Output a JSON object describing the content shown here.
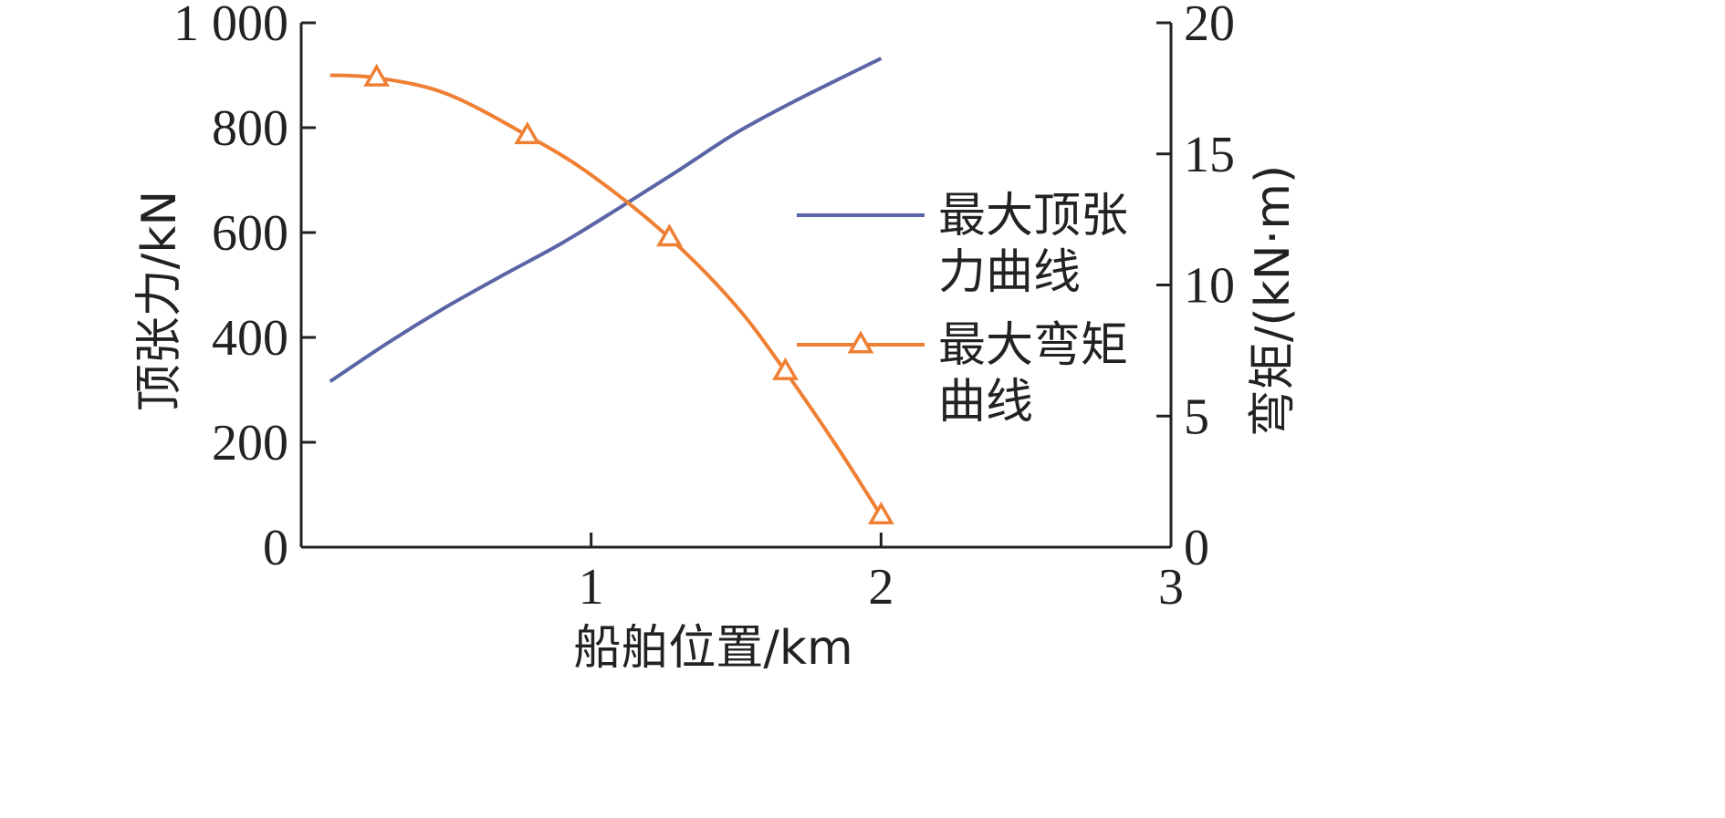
{
  "chart_data": {
    "type": "line",
    "xlabel": "船舶位置/km",
    "ylabel_left": "顶张力/kN",
    "ylabel_right": "弯矩/(kN·m)",
    "xlim": [
      0,
      3
    ],
    "ylim_left": [
      0,
      1000
    ],
    "ylim_right": [
      0,
      20
    ],
    "x_ticks": [
      {
        "value": 1,
        "label": "1"
      },
      {
        "value": 2,
        "label": "2"
      },
      {
        "value": 3,
        "label": "3"
      }
    ],
    "y_left_ticks": [
      {
        "value": 0,
        "label": "0"
      },
      {
        "value": 200,
        "label": "200"
      },
      {
        "value": 400,
        "label": "400"
      },
      {
        "value": 600,
        "label": "600"
      },
      {
        "value": 800,
        "label": "800"
      },
      {
        "value": 1000,
        "label": "1 000"
      }
    ],
    "y_right_ticks": [
      {
        "value": 0,
        "label": "0"
      },
      {
        "value": 5,
        "label": "5"
      },
      {
        "value": 10,
        "label": "10"
      },
      {
        "value": 15,
        "label": "15"
      },
      {
        "value": 20,
        "label": "20"
      }
    ],
    "grid": false,
    "legend_position": "right-center",
    "series": [
      {
        "name": "最大顶张力曲线",
        "axis": "left",
        "color": "#5b64a6",
        "marker": "none",
        "x": [
          0.1,
          0.3,
          0.5,
          0.7,
          0.9,
          1.1,
          1.3,
          1.5,
          1.7,
          1.9,
          2.0
        ],
        "y": [
          316,
          390,
          458,
          520,
          580,
          648,
          718,
          790,
          850,
          905,
          932
        ]
      },
      {
        "name": "最大弯矩曲线",
        "axis": "right",
        "color": "#ee7f33",
        "marker": "triangle",
        "x": [
          0.1,
          0.26,
          0.5,
          0.78,
          1.0,
          1.27,
          1.5,
          1.67,
          1.85,
          2.0
        ],
        "y": [
          18.0,
          17.9,
          17.3,
          15.7,
          14.2,
          11.8,
          9.2,
          6.7,
          3.8,
          1.2
        ],
        "marker_indices": [
          1,
          3,
          5,
          7,
          9
        ]
      }
    ],
    "legend_labels": [
      {
        "series": 0,
        "lines": [
          "最大顶张",
          "力曲线"
        ]
      },
      {
        "series": 1,
        "lines": [
          "最大弯矩",
          "曲线"
        ]
      }
    ]
  }
}
